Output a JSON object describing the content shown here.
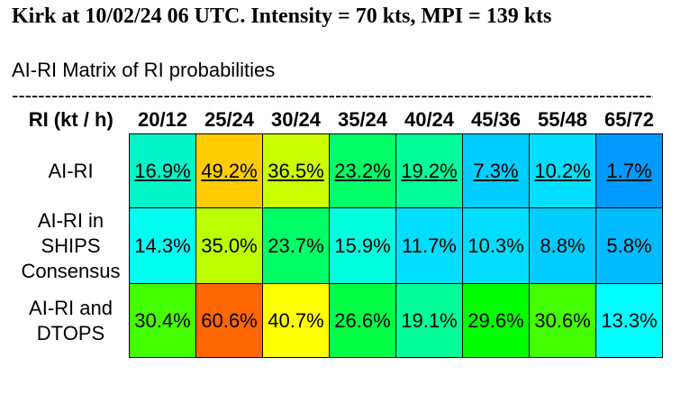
{
  "title": "Kirk at 10/02/24 06 UTC. Intensity = 70 kts, MPI = 139 kts",
  "subtitle": "AI-RI Matrix of RI probabilities",
  "divider": "------------------------------------------------------------------------------------------------------",
  "table": {
    "header": [
      "RI (kt / h)",
      "20/12",
      "25/24",
      "30/24",
      "35/24",
      "40/24",
      "45/36",
      "55/48",
      "65/72"
    ],
    "rows": [
      {
        "label": "AI-RI",
        "underlined": true,
        "cells": [
          {
            "text": "16.9%",
            "color": "#00f5c8"
          },
          {
            "text": "49.2%",
            "color": "#ffcc00"
          },
          {
            "text": "36.5%",
            "color": "#ccff00"
          },
          {
            "text": "23.2%",
            "color": "#00ff66"
          },
          {
            "text": "19.2%",
            "color": "#00ff99"
          },
          {
            "text": "7.3%",
            "color": "#00ccff"
          },
          {
            "text": "10.2%",
            "color": "#00ddff"
          },
          {
            "text": "1.7%",
            "color": "#0099ff"
          }
        ]
      },
      {
        "label": "AI-RI in SHIPS Consensus",
        "underlined": false,
        "cells": [
          {
            "text": "14.3%",
            "color": "#00fff0"
          },
          {
            "text": "35.0%",
            "color": "#bbff00"
          },
          {
            "text": "23.7%",
            "color": "#00ff66"
          },
          {
            "text": "15.9%",
            "color": "#00ffdd"
          },
          {
            "text": "11.7%",
            "color": "#00ddff"
          },
          {
            "text": "10.3%",
            "color": "#00ddff"
          },
          {
            "text": "8.8%",
            "color": "#00ccff"
          },
          {
            "text": "5.8%",
            "color": "#00bbff"
          }
        ]
      },
      {
        "label": "AI-RI and DTOPS",
        "underlined": false,
        "cells": [
          {
            "text": "30.4%",
            "color": "#44ff00"
          },
          {
            "text": "60.6%",
            "color": "#ff6600"
          },
          {
            "text": "40.7%",
            "color": "#ffff00"
          },
          {
            "text": "26.6%",
            "color": "#00ff44"
          },
          {
            "text": "19.1%",
            "color": "#00ff99"
          },
          {
            "text": "29.6%",
            "color": "#00ff00"
          },
          {
            "text": "30.6%",
            "color": "#44ff00"
          },
          {
            "text": "13.3%",
            "color": "#00ffff"
          }
        ]
      }
    ]
  }
}
